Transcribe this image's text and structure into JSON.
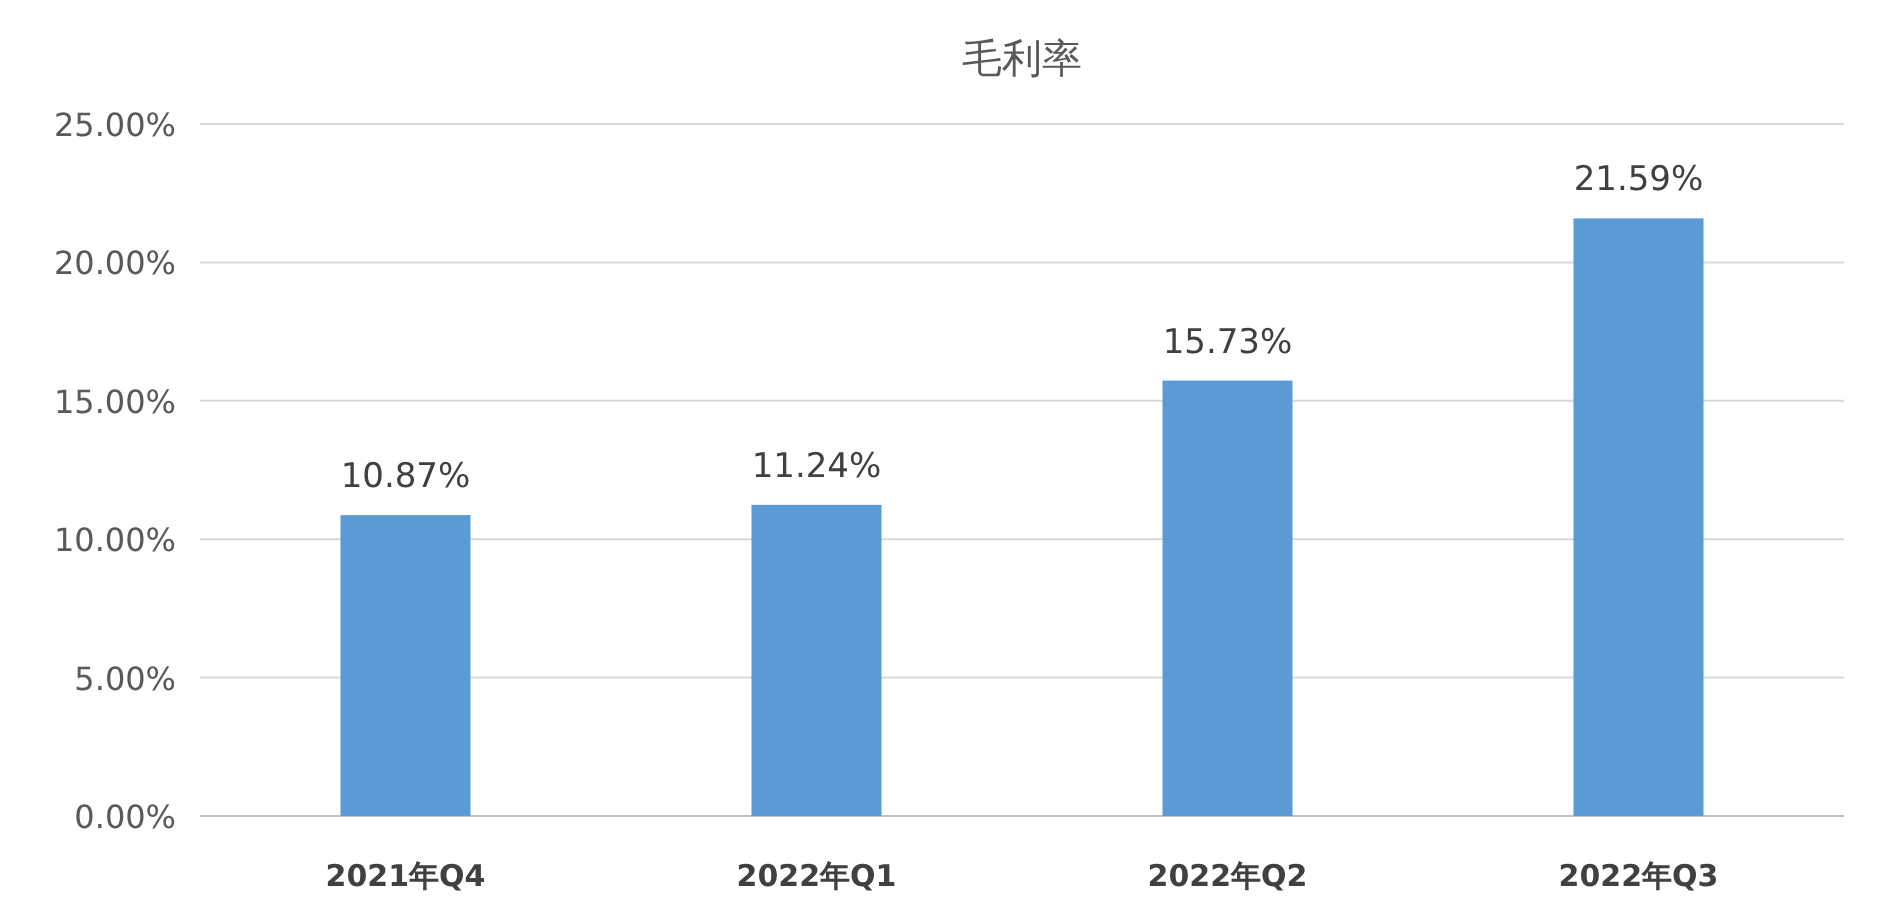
{
  "chart_data": {
    "type": "bar",
    "title": "毛利率",
    "categories": [
      "2021年Q4",
      "2022年Q1",
      "2022年Q2",
      "2022年Q3"
    ],
    "values": [
      10.87,
      11.24,
      15.73,
      21.59
    ],
    "value_labels": [
      "10.87%",
      "11.24%",
      "15.73%",
      "21.59%"
    ],
    "color": "#5b9bd5",
    "ylim": [
      0,
      25
    ],
    "yticks": [
      {
        "value": 0,
        "label": "0.00%"
      },
      {
        "value": 5,
        "label": "5.00%"
      },
      {
        "value": 10,
        "label": "10.00%"
      },
      {
        "value": 15,
        "label": "15.00%"
      },
      {
        "value": 20,
        "label": "20.00%"
      },
      {
        "value": 25,
        "label": "25.00%"
      }
    ],
    "grid": "y"
  }
}
